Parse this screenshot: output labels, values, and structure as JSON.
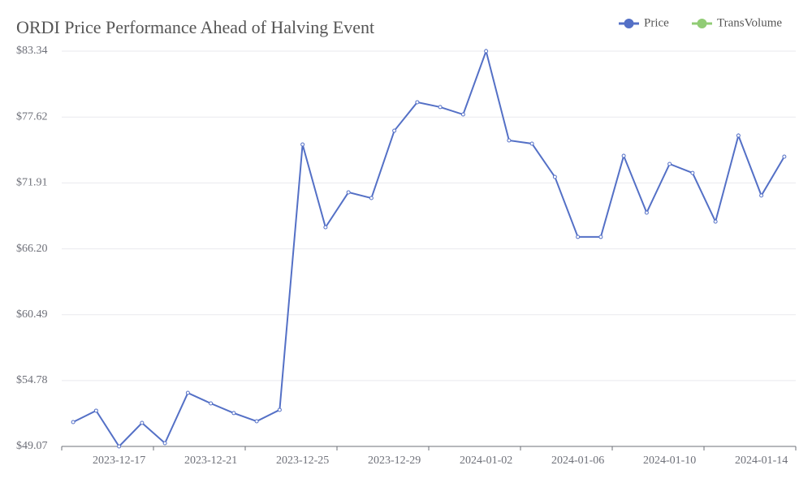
{
  "chart_data": {
    "type": "line",
    "title": "ORDI Price Performance Ahead of Halving Event",
    "categories": [
      null,
      null,
      "2023-12-17",
      null,
      null,
      null,
      "2023-12-21",
      null,
      null,
      null,
      "2023-12-25",
      null,
      null,
      null,
      "2023-12-29",
      null,
      null,
      null,
      "2024-01-02",
      null,
      null,
      null,
      "2024-01-06",
      null,
      null,
      null,
      "2024-01-10",
      null,
      null,
      null,
      "2024-01-14",
      null
    ],
    "series": [
      {
        "name": "Price",
        "color": "#5470c6",
        "values": [
          51.18,
          52.17,
          49.07,
          51.11,
          49.35,
          53.71,
          52.8,
          51.96,
          51.25,
          52.24,
          75.25,
          68.07,
          71.1,
          70.6,
          76.44,
          78.91,
          78.49,
          77.85,
          83.34,
          75.6,
          75.32,
          72.43,
          67.23,
          67.23,
          74.26,
          69.34,
          73.56,
          72.78,
          68.56,
          76.02,
          70.82,
          74.19
        ]
      },
      {
        "name": "TransVolume",
        "color": "#91cc75",
        "values": [
          null,
          null,
          null,
          null,
          null,
          null,
          null,
          null,
          null,
          null,
          null,
          null,
          null,
          null,
          null,
          null,
          null,
          null,
          null,
          null,
          null,
          null,
          null,
          null,
          null,
          null,
          null,
          null,
          null,
          null,
          null,
          null
        ]
      }
    ],
    "ylim": [
      49.07,
      83.34
    ],
    "yticks": [
      {
        "value": 49.07,
        "label": "$49.07"
      },
      {
        "value": 54.78,
        "label": "$54.78"
      },
      {
        "value": 60.49,
        "label": "$60.49"
      },
      {
        "value": 66.2,
        "label": "$66.20"
      },
      {
        "value": 71.91,
        "label": "$71.91"
      },
      {
        "value": 77.62,
        "label": "$77.62"
      },
      {
        "value": 83.34,
        "label": "$83.34"
      }
    ],
    "grid": true,
    "legend": "top-right"
  }
}
